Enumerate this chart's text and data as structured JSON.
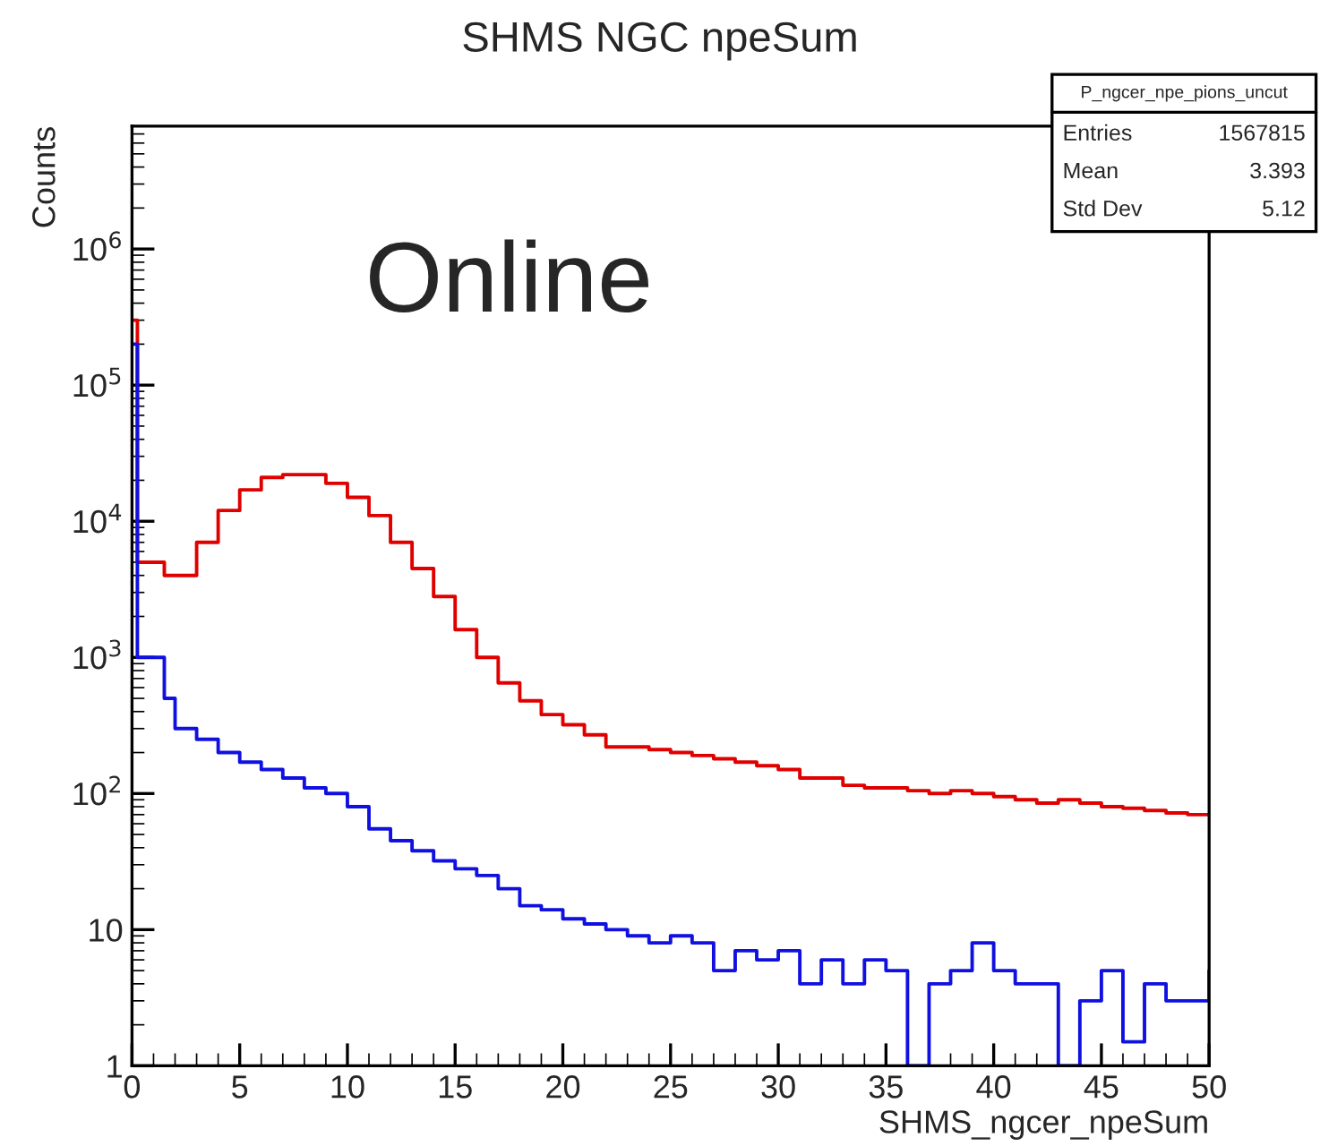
{
  "chart_data": {
    "type": "step",
    "title": "SHMS NGC npeSum",
    "xlabel": "SHMS_ngcer_npeSum",
    "ylabel": "Counts",
    "annotations": [
      "Online",
      "P_ngcer_npe_pions_uncut",
      "Entries",
      "1567815",
      "Mean",
      "3.393",
      "Std Dev",
      "5.12"
    ],
    "log": "y",
    "xlim": [
      0,
      50
    ],
    "xticks": [
      0,
      5,
      10,
      15,
      20,
      25,
      30,
      35,
      40,
      45,
      50
    ],
    "ylim": [
      1,
      8000000
    ],
    "yticks": [
      1,
      10,
      {
        "value": 100,
        "label": "10$^{2}$"
      },
      {
        "value": 1000,
        "label": "10$^{3}$"
      },
      {
        "value": 10000,
        "label": "10$^{4}$"
      },
      {
        "value": 100000,
        "label": "10$^{5}$"
      },
      {
        "value": 1000000,
        "label": "10$^{6}$"
      }
    ],
    "grid": false,
    "legend": false,
    "series": [
      {
        "color": "#e00000",
        "x": [
          0,
          0.25,
          0.5,
          1,
          1.5,
          2,
          3,
          4,
          5,
          6,
          7,
          8,
          9,
          10,
          11,
          12,
          13,
          14,
          15,
          16,
          17,
          18,
          19,
          20,
          21,
          22,
          23,
          24,
          25,
          26,
          27,
          28,
          29,
          30,
          31,
          32,
          33,
          34,
          35,
          36,
          37,
          38,
          39,
          40,
          41,
          42,
          43,
          44,
          45,
          46,
          47,
          48,
          49,
          50
        ],
        "values": [
          300000,
          5000,
          5000,
          5000,
          4000,
          4000,
          7000,
          12000,
          17000,
          21000,
          22000,
          22000,
          19000,
          15000,
          11000,
          7000,
          4500,
          2800,
          1600,
          1000,
          650,
          480,
          380,
          320,
          270,
          220,
          220,
          210,
          200,
          190,
          180,
          170,
          160,
          150,
          130,
          130,
          115,
          110,
          110,
          105,
          100,
          105,
          100,
          95,
          90,
          85,
          90,
          85,
          80,
          78,
          75,
          72,
          70,
          70
        ]
      },
      {
        "color": "#1010e0",
        "x": [
          0,
          0.25,
          0.5,
          1,
          1.5,
          2,
          3,
          4,
          5,
          6,
          7,
          8,
          9,
          10,
          11,
          12,
          13,
          14,
          15,
          16,
          17,
          18,
          19,
          20,
          21,
          22,
          23,
          24,
          25,
          26,
          27,
          28,
          29,
          30,
          31,
          32,
          33,
          34,
          35,
          36,
          37,
          38,
          39,
          40,
          41,
          42,
          43,
          44,
          45,
          46,
          47,
          48,
          49,
          50
        ],
        "values": [
          200000,
          1000,
          1000,
          1000,
          500,
          300,
          250,
          200,
          170,
          150,
          130,
          110,
          100,
          80,
          55,
          45,
          38,
          32,
          28,
          25,
          20,
          15,
          14,
          12,
          11,
          10,
          9,
          8,
          9,
          8,
          5,
          7,
          6,
          7,
          4,
          6,
          4,
          6,
          5,
          1,
          4,
          5,
          8,
          5,
          4,
          4,
          1,
          3,
          5,
          1.5,
          4,
          3,
          3,
          5
        ]
      }
    ]
  }
}
